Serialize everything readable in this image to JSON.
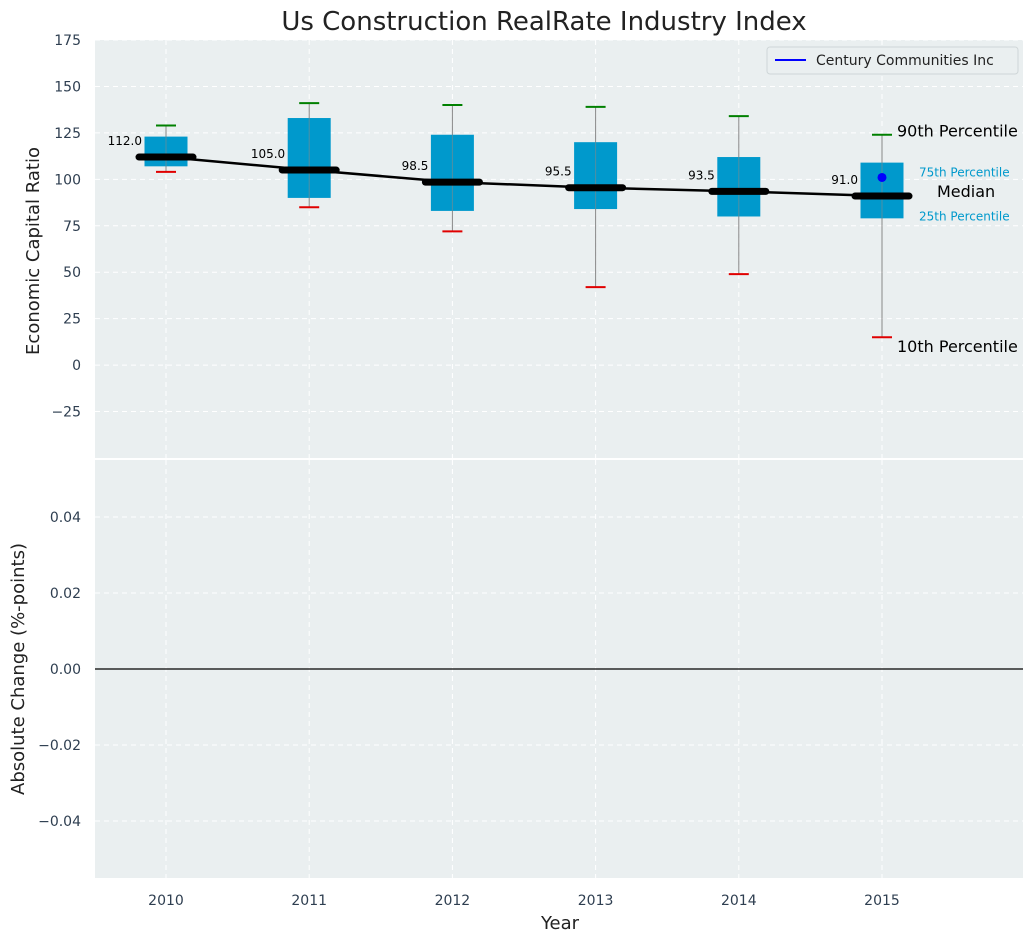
{
  "colors": {
    "panel_bg": "#eaeff0",
    "box": "#0099cc",
    "median_line": "#000000",
    "whisker": "#888888",
    "cap_high": "#008000",
    "cap_low": "#e00000",
    "company_marker": "#0000ff",
    "annotation_small": "#0099cc"
  },
  "chart_data": [
    {
      "type": "box",
      "title": "Us Construction RealRate Industry Index",
      "ylabel": "Economic Capital Ratio",
      "ylim": [
        -50,
        175
      ],
      "yticks": [
        175,
        150,
        125,
        100,
        75,
        50,
        25,
        0,
        -25
      ],
      "ytick_labels": [
        "175",
        "150",
        "125",
        "100",
        "75",
        "50",
        "25",
        "0",
        "−25"
      ],
      "grid": true,
      "legend": {
        "placement": "top-right",
        "entries": [
          "Century Communities Inc"
        ]
      },
      "categories": [
        "2010",
        "2011",
        "2012",
        "2013",
        "2014",
        "2015"
      ],
      "p10": [
        104,
        85,
        72,
        42,
        49,
        15
      ],
      "p25": [
        107,
        90,
        83,
        84,
        80,
        79
      ],
      "median": [
        112.0,
        105.0,
        98.5,
        95.5,
        93.5,
        91.0
      ],
      "median_labels": [
        "112.0",
        "105.0",
        "98.5",
        "95.5",
        "93.5",
        "91.0"
      ],
      "p75": [
        123,
        133,
        124,
        120,
        112,
        109
      ],
      "p90": [
        129,
        141,
        140,
        139,
        134,
        124
      ],
      "series": [
        {
          "name": "Century Communities Inc",
          "x": [
            "2015"
          ],
          "values": [
            101
          ]
        }
      ],
      "annotations": {
        "p90": "90th Percentile",
        "p75": "75th Percentile",
        "median": "Median",
        "p25": "25th Percentile",
        "p10": "10th Percentile"
      }
    },
    {
      "type": "line",
      "ylabel": "Absolute Change (%-points)",
      "xlabel": "Year",
      "ylim": [
        -0.055,
        0.055
      ],
      "yticks": [
        0.04,
        0.02,
        0.0,
        -0.02,
        -0.04
      ],
      "ytick_labels": [
        "0.04",
        "0.02",
        "0.00",
        "−0.02",
        "−0.04"
      ],
      "x": [
        "2010",
        "2011",
        "2012",
        "2013",
        "2014",
        "2015"
      ],
      "reference_line": 0.0,
      "grid": true
    }
  ]
}
